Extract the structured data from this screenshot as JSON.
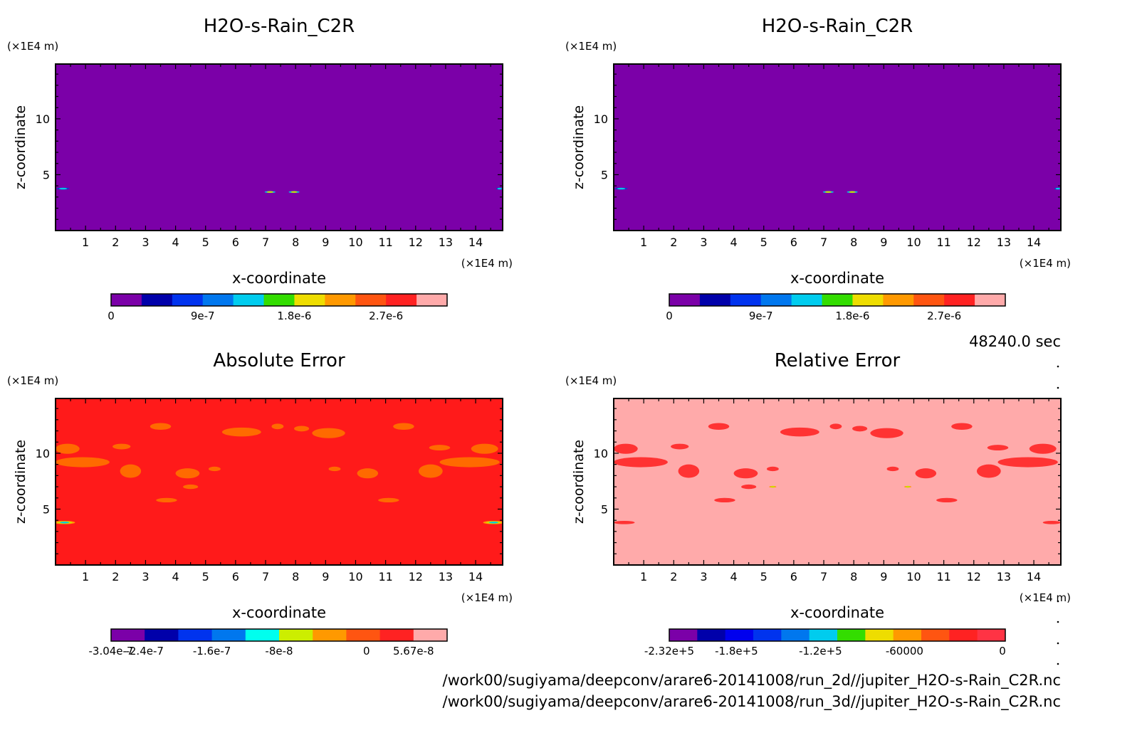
{
  "footer": {
    "time": "48240.0 sec",
    "path1": "/work00/sugiyama/deepconv/arare6-20141008/run_2d//jupiter_H2O-s-Rain_C2R.nc",
    "path2": "/work00/sugiyama/deepconv/arare6-20141008/run_3d//jupiter_H2O-s-Rain_C2R.nc"
  },
  "chart_data": [
    {
      "type": "heatmap",
      "title": "H2O-s-Rain_C2R",
      "xlabel": "x-coordinate",
      "ylabel": "z-coordinate",
      "xunit": "(×1E4 m)",
      "yunit": "(×1E4 m)",
      "xlim": [
        0,
        14.9
      ],
      "ylim": [
        0,
        14.9
      ],
      "xticks": [
        "1",
        "2",
        "3",
        "4",
        "5",
        "6",
        "7",
        "8",
        "9",
        "10",
        "11",
        "12",
        "13",
        "14"
      ],
      "yticks": [
        "5",
        "10"
      ],
      "field_color": "#7b00a8",
      "blobs": [
        {
          "x": 0.25,
          "y": 3.75,
          "rx": 0.22,
          "ry": 0.09,
          "colors": [
            "#0044cc",
            "#00c8e6"
          ]
        },
        {
          "x": 14.8,
          "y": 3.75,
          "rx": 0.12,
          "ry": 0.09,
          "colors": [
            "#0044cc",
            "#00c8e6"
          ]
        },
        {
          "x": 7.15,
          "y": 3.45,
          "rx": 0.18,
          "ry": 0.08,
          "colors": [
            "#00c8e6",
            "#ccdd00"
          ]
        },
        {
          "x": 7.95,
          "y": 3.45,
          "rx": 0.18,
          "ry": 0.08,
          "colors": [
            "#00c8e6",
            "#ccdd00"
          ]
        }
      ],
      "colorbar": {
        "colors": [
          "#7b00a8",
          "#0000aa",
          "#0033ee",
          "#0077ee",
          "#00ccee",
          "#33dd00",
          "#eedd00",
          "#ff9900",
          "#ff5511",
          "#ff2222",
          "#ffaaaa"
        ],
        "labels": [
          "0",
          "9e-7",
          "1.8e-6",
          "2.7e-6"
        ],
        "label_at": [
          0,
          3,
          6,
          9
        ]
      }
    },
    {
      "type": "heatmap",
      "title": "H2O-s-Rain_C2R",
      "xlabel": "x-coordinate",
      "ylabel": "z-coordinate",
      "xunit": "(×1E4 m)",
      "yunit": "(×1E4 m)",
      "xlim": [
        0,
        14.9
      ],
      "ylim": [
        0,
        14.9
      ],
      "xticks": [
        "1",
        "2",
        "3",
        "4",
        "5",
        "6",
        "7",
        "8",
        "9",
        "10",
        "11",
        "12",
        "13",
        "14"
      ],
      "yticks": [
        "5",
        "10"
      ],
      "field_color": "#7b00a8",
      "blobs": [
        {
          "x": 0.25,
          "y": 3.75,
          "rx": 0.22,
          "ry": 0.09,
          "colors": [
            "#0044cc",
            "#00c8e6"
          ]
        },
        {
          "x": 14.8,
          "y": 3.75,
          "rx": 0.12,
          "ry": 0.09,
          "colors": [
            "#0044cc",
            "#00c8e6"
          ]
        },
        {
          "x": 7.15,
          "y": 3.45,
          "rx": 0.18,
          "ry": 0.08,
          "colors": [
            "#00c8e6",
            "#ccdd00"
          ]
        },
        {
          "x": 7.95,
          "y": 3.45,
          "rx": 0.18,
          "ry": 0.08,
          "colors": [
            "#00c8e6",
            "#ccdd00"
          ]
        }
      ],
      "colorbar": {
        "colors": [
          "#7b00a8",
          "#0000aa",
          "#0033ee",
          "#0077ee",
          "#00ccee",
          "#33dd00",
          "#eedd00",
          "#ff9900",
          "#ff5511",
          "#ff2222",
          "#ffaaaa"
        ],
        "labels": [
          "0",
          "9e-7",
          "1.8e-6",
          "2.7e-6"
        ],
        "label_at": [
          0,
          3,
          6,
          9
        ]
      }
    },
    {
      "type": "heatmap",
      "title": "Absolute Error",
      "xlabel": "x-coordinate",
      "ylabel": "z-coordinate",
      "xunit": "(×1E4 m)",
      "yunit": "(×1E4 m)",
      "xlim": [
        0,
        14.9
      ],
      "ylim": [
        0,
        14.9
      ],
      "xticks": [
        "1",
        "2",
        "3",
        "4",
        "5",
        "6",
        "7",
        "8",
        "9",
        "10",
        "11",
        "12",
        "13",
        "14"
      ],
      "yticks": [
        "5",
        "10"
      ],
      "field_color": "#ff1a1a",
      "blobs": [
        {
          "x": 3.5,
          "y": 12.4,
          "rx": 0.35,
          "ry": 0.3,
          "colors": [
            "#ff6a00"
          ]
        },
        {
          "x": 6.2,
          "y": 11.9,
          "rx": 0.65,
          "ry": 0.4,
          "colors": [
            "#ff6a00"
          ]
        },
        {
          "x": 7.4,
          "y": 12.4,
          "rx": 0.2,
          "ry": 0.25,
          "colors": [
            "#ff6a00"
          ]
        },
        {
          "x": 8.2,
          "y": 12.2,
          "rx": 0.25,
          "ry": 0.25,
          "colors": [
            "#ff6a00"
          ]
        },
        {
          "x": 9.1,
          "y": 11.8,
          "rx": 0.55,
          "ry": 0.45,
          "colors": [
            "#ff6a00"
          ]
        },
        {
          "x": 11.6,
          "y": 12.4,
          "rx": 0.35,
          "ry": 0.3,
          "colors": [
            "#ff6a00"
          ]
        },
        {
          "x": 0.4,
          "y": 10.4,
          "rx": 0.4,
          "ry": 0.45,
          "colors": [
            "#ff6a00"
          ]
        },
        {
          "x": 0.9,
          "y": 9.2,
          "rx": 0.9,
          "ry": 0.45,
          "colors": [
            "#ff6a00"
          ]
        },
        {
          "x": 2.2,
          "y": 10.6,
          "rx": 0.3,
          "ry": 0.25,
          "colors": [
            "#ff6a00"
          ]
        },
        {
          "x": 2.5,
          "y": 8.4,
          "rx": 0.35,
          "ry": 0.6,
          "colors": [
            "#ff6a00"
          ]
        },
        {
          "x": 14.3,
          "y": 10.4,
          "rx": 0.45,
          "ry": 0.45,
          "colors": [
            "#ff6a00"
          ]
        },
        {
          "x": 13.8,
          "y": 9.2,
          "rx": 1.0,
          "ry": 0.45,
          "colors": [
            "#ff6a00"
          ]
        },
        {
          "x": 12.8,
          "y": 10.5,
          "rx": 0.35,
          "ry": 0.25,
          "colors": [
            "#ff6a00"
          ]
        },
        {
          "x": 12.5,
          "y": 8.4,
          "rx": 0.4,
          "ry": 0.6,
          "colors": [
            "#ff6a00"
          ]
        },
        {
          "x": 4.4,
          "y": 8.2,
          "rx": 0.4,
          "ry": 0.45,
          "colors": [
            "#ff6a00"
          ]
        },
        {
          "x": 10.4,
          "y": 8.2,
          "rx": 0.35,
          "ry": 0.45,
          "colors": [
            "#ff6a00"
          ]
        },
        {
          "x": 4.5,
          "y": 7.0,
          "rx": 0.25,
          "ry": 0.2,
          "colors": [
            "#ff6a00"
          ]
        },
        {
          "x": 5.3,
          "y": 8.6,
          "rx": 0.2,
          "ry": 0.2,
          "colors": [
            "#ff6a00"
          ]
        },
        {
          "x": 9.3,
          "y": 8.6,
          "rx": 0.2,
          "ry": 0.2,
          "colors": [
            "#ff6a00"
          ]
        },
        {
          "x": 3.7,
          "y": 5.8,
          "rx": 0.35,
          "ry": 0.2,
          "colors": [
            "#ff6a00"
          ]
        },
        {
          "x": 11.1,
          "y": 5.8,
          "rx": 0.35,
          "ry": 0.2,
          "colors": [
            "#ff6a00"
          ]
        },
        {
          "x": 0.3,
          "y": 3.8,
          "rx": 0.35,
          "ry": 0.15,
          "colors": [
            "#ff9900",
            "#ccdd00",
            "#00c8e6"
          ]
        },
        {
          "x": 14.6,
          "y": 3.8,
          "rx": 0.35,
          "ry": 0.15,
          "colors": [
            "#ff9900",
            "#ccdd00",
            "#00c8e6"
          ]
        }
      ],
      "colorbar": {
        "colors": [
          "#7b00a8",
          "#0000aa",
          "#0033ee",
          "#0077ee",
          "#00ffee",
          "#ccee00",
          "#ff9900",
          "#ff5511",
          "#ff2222",
          "#ffaaaa"
        ],
        "labels": [
          "-3.04e-7",
          "-2.4e-7",
          "-1.6e-7",
          "-8e-8",
          "0",
          "5.67e-8"
        ],
        "label_at": [
          0,
          1,
          3,
          5,
          7.6,
          9
        ]
      }
    },
    {
      "type": "heatmap",
      "title": "Relative Error",
      "xlabel": "x-coordinate",
      "ylabel": "z-coordinate",
      "xunit": "(×1E4 m)",
      "yunit": "(×1E4 m)",
      "xlim": [
        0,
        14.9
      ],
      "ylim": [
        0,
        14.9
      ],
      "xticks": [
        "1",
        "2",
        "3",
        "4",
        "5",
        "6",
        "7",
        "8",
        "9",
        "10",
        "11",
        "12",
        "13",
        "14"
      ],
      "yticks": [
        "5",
        "10"
      ],
      "field_color": "#ffaaaa",
      "blobs": [
        {
          "x": 3.5,
          "y": 12.4,
          "rx": 0.35,
          "ry": 0.3,
          "colors": [
            "#ff3333"
          ]
        },
        {
          "x": 6.2,
          "y": 11.9,
          "rx": 0.65,
          "ry": 0.4,
          "colors": [
            "#ff3333"
          ]
        },
        {
          "x": 7.4,
          "y": 12.4,
          "rx": 0.2,
          "ry": 0.25,
          "colors": [
            "#ff3333"
          ]
        },
        {
          "x": 8.2,
          "y": 12.2,
          "rx": 0.25,
          "ry": 0.25,
          "colors": [
            "#ff3333"
          ]
        },
        {
          "x": 9.1,
          "y": 11.8,
          "rx": 0.55,
          "ry": 0.45,
          "colors": [
            "#ff3333"
          ]
        },
        {
          "x": 11.6,
          "y": 12.4,
          "rx": 0.35,
          "ry": 0.3,
          "colors": [
            "#ff3333"
          ]
        },
        {
          "x": 0.4,
          "y": 10.4,
          "rx": 0.4,
          "ry": 0.45,
          "colors": [
            "#ff3333"
          ]
        },
        {
          "x": 0.9,
          "y": 9.2,
          "rx": 0.9,
          "ry": 0.45,
          "colors": [
            "#ff3333"
          ]
        },
        {
          "x": 2.2,
          "y": 10.6,
          "rx": 0.3,
          "ry": 0.25,
          "colors": [
            "#ff3333"
          ]
        },
        {
          "x": 2.5,
          "y": 8.4,
          "rx": 0.35,
          "ry": 0.6,
          "colors": [
            "#ff3333"
          ]
        },
        {
          "x": 14.3,
          "y": 10.4,
          "rx": 0.45,
          "ry": 0.45,
          "colors": [
            "#ff3333"
          ]
        },
        {
          "x": 13.8,
          "y": 9.2,
          "rx": 1.0,
          "ry": 0.45,
          "colors": [
            "#ff3333"
          ]
        },
        {
          "x": 12.8,
          "y": 10.5,
          "rx": 0.35,
          "ry": 0.25,
          "colors": [
            "#ff3333"
          ]
        },
        {
          "x": 12.5,
          "y": 8.4,
          "rx": 0.4,
          "ry": 0.6,
          "colors": [
            "#ff3333"
          ]
        },
        {
          "x": 4.4,
          "y": 8.2,
          "rx": 0.4,
          "ry": 0.45,
          "colors": [
            "#ff3333"
          ]
        },
        {
          "x": 10.4,
          "y": 8.2,
          "rx": 0.35,
          "ry": 0.45,
          "colors": [
            "#ff3333"
          ]
        },
        {
          "x": 4.5,
          "y": 7.0,
          "rx": 0.25,
          "ry": 0.2,
          "colors": [
            "#ff3333"
          ]
        },
        {
          "x": 5.3,
          "y": 8.6,
          "rx": 0.2,
          "ry": 0.2,
          "colors": [
            "#ff3333"
          ]
        },
        {
          "x": 9.3,
          "y": 8.6,
          "rx": 0.2,
          "ry": 0.2,
          "colors": [
            "#ff3333"
          ]
        },
        {
          "x": 3.7,
          "y": 5.8,
          "rx": 0.35,
          "ry": 0.2,
          "colors": [
            "#ff3333"
          ]
        },
        {
          "x": 11.1,
          "y": 5.8,
          "rx": 0.35,
          "ry": 0.2,
          "colors": [
            "#ff3333"
          ]
        },
        {
          "x": 0.35,
          "y": 3.8,
          "rx": 0.35,
          "ry": 0.15,
          "colors": [
            "#ff3333"
          ]
        },
        {
          "x": 14.6,
          "y": 3.8,
          "rx": 0.3,
          "ry": 0.15,
          "colors": [
            "#ff3333"
          ]
        },
        {
          "x": 5.3,
          "y": 7.0,
          "rx": 0.12,
          "ry": 0.07,
          "colors": [
            "#ff9900",
            "#ccdd00"
          ]
        },
        {
          "x": 9.8,
          "y": 7.0,
          "rx": 0.12,
          "ry": 0.07,
          "colors": [
            "#ff9900",
            "#ccdd00"
          ]
        }
      ],
      "colorbar": {
        "colors": [
          "#7b00a8",
          "#0000aa",
          "#0000ee",
          "#0033ee",
          "#0077ee",
          "#00ccee",
          "#33dd00",
          "#eedd00",
          "#ff9900",
          "#ff5511",
          "#ff2222",
          "#ff3344"
        ],
        "labels": [
          "-2.32e+5",
          "-1.8e+5",
          "-1.2e+5",
          "-60000",
          "0"
        ],
        "label_at": [
          0,
          2.4,
          5.4,
          8.4,
          11.9
        ]
      }
    }
  ]
}
